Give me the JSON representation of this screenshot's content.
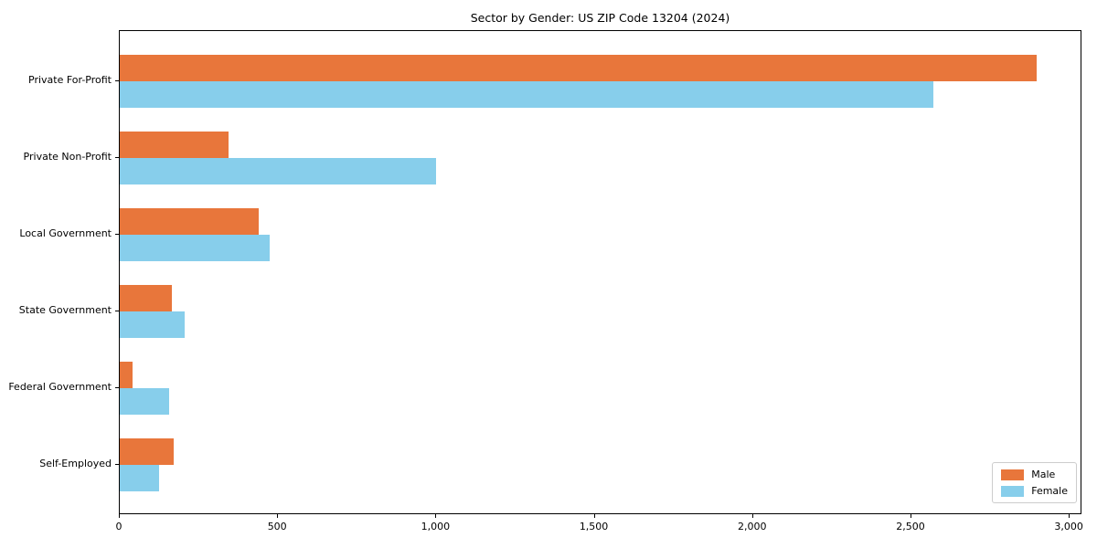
{
  "chart_data": {
    "type": "bar",
    "orientation": "horizontal",
    "title": "Sector by Gender: US ZIP Code 13204 (2024)",
    "categories": [
      "Private For-Profit",
      "Private Non-Profit",
      "Local Government",
      "State Government",
      "Federal Government",
      "Self-Employed"
    ],
    "series": [
      {
        "name": "Male",
        "color": "#e8763b",
        "values": [
          2900,
          345,
          440,
          165,
          40,
          170
        ]
      },
      {
        "name": "Female",
        "color": "#87ceeb",
        "values": [
          2575,
          1000,
          475,
          205,
          155,
          125
        ]
      }
    ],
    "xlim": [
      0,
      3040
    ],
    "xticks": [
      0,
      500,
      1000,
      1500,
      2000,
      2500,
      3000
    ],
    "xtick_labels": [
      "0",
      "500",
      "1,000",
      "1,500",
      "2,000",
      "2,500",
      "3,000"
    ],
    "xlabel": "",
    "ylabel": "",
    "grid": false,
    "legend_position": "lower right"
  }
}
